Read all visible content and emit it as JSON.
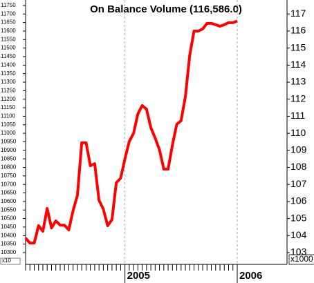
{
  "chart_data": {
    "type": "line",
    "title": "On Balance Volume (116,586.0)",
    "categories": [
      null,
      null,
      null,
      null,
      null,
      null,
      null,
      null,
      null,
      null,
      null,
      null,
      null,
      null,
      null,
      null,
      null,
      null,
      null,
      null,
      null,
      null,
      null,
      "2005",
      null,
      null,
      null,
      null,
      null,
      null,
      null,
      null,
      null,
      null,
      null,
      null,
      null,
      null,
      null,
      null,
      null,
      null,
      null,
      null,
      null,
      null,
      null,
      null,
      null,
      "2006"
    ],
    "series": [
      {
        "name": "On Balance Volume",
        "color": "#ff0000",
        "values": [
          10385,
          10356,
          10356,
          10458,
          10425,
          10559,
          10445,
          10486,
          10461,
          10461,
          10433,
          10547,
          10636,
          10944,
          10944,
          10810,
          10822,
          10607,
          10555,
          10458,
          10494,
          10709,
          10737,
          10850,
          10952,
          11000,
          11114,
          11163,
          11142,
          11033,
          10972,
          10903,
          10790,
          10790,
          10932,
          11053,
          11074,
          11215,
          11458,
          11600,
          11600,
          11612,
          11645,
          11645,
          11637,
          11628,
          11637,
          11649,
          11649,
          11659
        ]
      }
    ],
    "ylim": [
      10231,
      11782
    ],
    "yticks": [
      10300,
      10350,
      10400,
      10450,
      10500,
      10550,
      10600,
      10650,
      10700,
      10750,
      10800,
      10850,
      10900,
      10950,
      11000,
      11050,
      11100,
      11150,
      11200,
      11250,
      11300,
      11350,
      11400,
      11450,
      11500,
      11550,
      11600,
      11650,
      11700,
      11750
    ],
    "y2lim": [
      102.31,
      117.82
    ],
    "y2ticks": [
      103,
      104,
      105,
      106,
      107,
      108,
      109,
      110,
      111,
      112,
      113,
      114,
      115,
      116,
      117
    ],
    "y_unit_label": "x10",
    "y2_unit_label": "x1000"
  }
}
